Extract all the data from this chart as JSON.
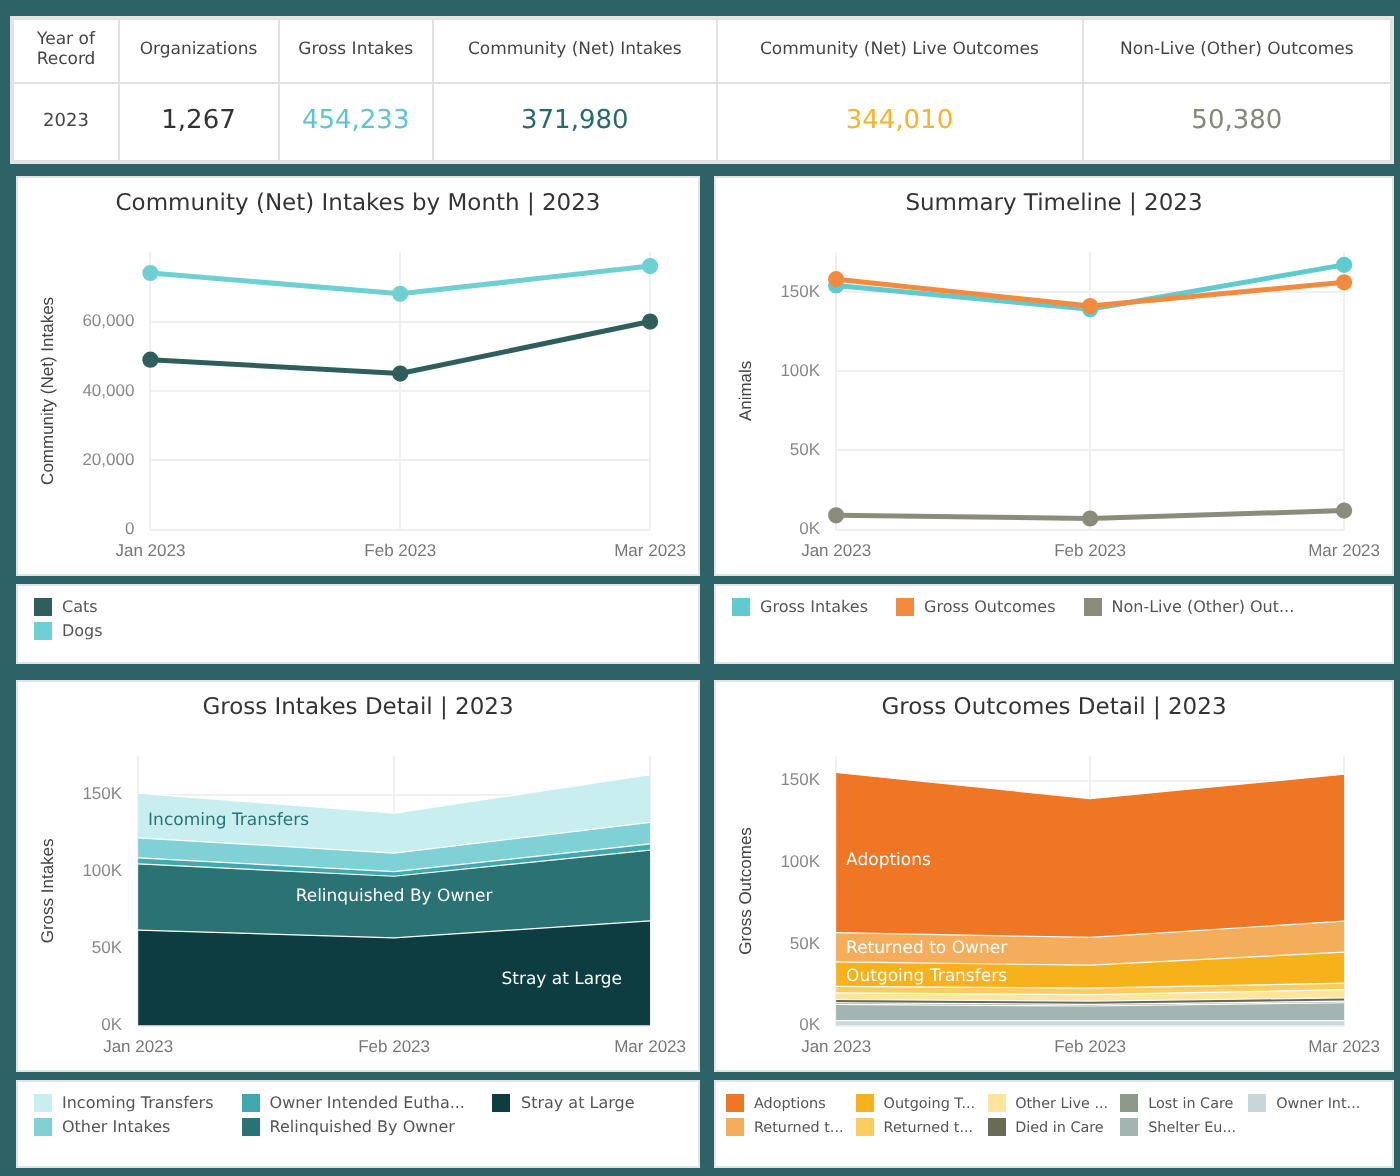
{
  "chart_data": [
    {
      "type": "other",
      "title": "Year of Record",
      "categories": [
        "Organizations",
        "Gross Intakes",
        "Community (Net) Intakes",
        "Community (Net) Live Outcomes",
        "Non-Live (Other) Outcomes"
      ],
      "xlabel": "2023",
      "value_labels": [
        "1,267",
        "454,233",
        "371,980",
        "344,010",
        "50,380"
      ]
    },
    {
      "type": "line",
      "title": "Community (Net) Intakes by Month | 2023",
      "ylabel": "Community (Net) Intakes",
      "categories": [
        "Jan 2023",
        "Feb 2023",
        "Mar 2023"
      ],
      "series": [
        {
          "name": "Cats",
          "color": "#2f5f5c",
          "values": [
            49000,
            45000,
            60000
          ]
        },
        {
          "name": "Dogs",
          "color": "#6fd0d3",
          "values": [
            74000,
            68000,
            76000
          ]
        }
      ],
      "ylim": [
        0,
        80000
      ],
      "yticks": [
        0,
        {
          "value": 20000,
          "label": "20,000"
        },
        {
          "value": 40000,
          "label": "40,000"
        },
        {
          "value": 60000,
          "label": "60,000"
        }
      ],
      "grid": true,
      "legend": "bottom",
      "marker": "circle"
    },
    {
      "type": "line",
      "title": "Summary Timeline | 2023",
      "ylabel": "Animals",
      "categories": [
        "Jan 2023",
        "Feb 2023",
        "Mar 2023"
      ],
      "series": [
        {
          "name": "Gross Intakes",
          "color": "#5fcbcf",
          "values": [
            154000,
            139000,
            167000
          ]
        },
        {
          "name": "Gross Outcomes",
          "color": "#f28b3e",
          "values": [
            158000,
            141000,
            156000
          ]
        },
        {
          "name": "Non-Live (Other) Out...",
          "color": "#8c8c7c",
          "values": [
            9000,
            7000,
            12000
          ]
        }
      ],
      "ylim": [
        0,
        175000
      ],
      "yticks": [
        {
          "value": 0,
          "label": "0K"
        },
        {
          "value": 50000,
          "label": "50K"
        },
        {
          "value": 100000,
          "label": "100K"
        },
        {
          "value": 150000,
          "label": "150K"
        }
      ],
      "grid": true,
      "legend": "bottom",
      "marker": "circle"
    },
    {
      "type": "area",
      "stacked": true,
      "title": "Gross Intakes Detail | 2023",
      "ylabel": "Gross Intakes",
      "categories": [
        "Jan 2023",
        "Feb 2023",
        "Mar 2023"
      ],
      "series": [
        {
          "name": "Stray at Large",
          "color": "#0d3d40",
          "values": [
            62000,
            57000,
            68000
          ]
        },
        {
          "name": "Relinquished By Owner",
          "color": "#2a7273",
          "values": [
            43000,
            40000,
            46000
          ]
        },
        {
          "name": "Owner Intended Eutha...",
          "color": "#3fa9ae",
          "values": [
            4000,
            3000,
            4000
          ]
        },
        {
          "name": "Other Intakes",
          "color": "#7fd1d5",
          "values": [
            13000,
            12000,
            14000
          ]
        },
        {
          "name": "Incoming Transfers",
          "color": "#c9eef0",
          "values": [
            29000,
            26000,
            31000
          ]
        }
      ],
      "ylim": [
        0,
        175000
      ],
      "yticks": [
        {
          "value": 0,
          "label": "0K"
        },
        {
          "value": 50000,
          "label": "50K"
        },
        {
          "value": 100000,
          "label": "100K"
        },
        {
          "value": 150000,
          "label": "150K"
        }
      ],
      "grid": true,
      "legend": "bottom",
      "annotations": [
        {
          "text": "Incoming Transfers",
          "x": "Jan 2023",
          "y": 133000
        },
        "Relinquished By Owner",
        {
          "text": "Stray at Large",
          "x": "Mar 2023",
          "y": 30000
        }
      ]
    },
    {
      "type": "area",
      "stacked": true,
      "title": "Gross Outcomes Detail | 2023",
      "ylabel": "Gross Outcomes",
      "categories": [
        "Jan 2023",
        "Feb 2023",
        "Mar 2023"
      ],
      "series": [
        {
          "name": "Owner Int...",
          "color": "#c6d6db",
          "values": [
            3000,
            3000,
            3000
          ]
        },
        {
          "name": "Shelter Eu...",
          "color": "#a2b5b0",
          "values": [
            10000,
            9000,
            11000
          ]
        },
        {
          "name": "Lost in Care",
          "color": "#8c9a89",
          "values": [
            1000,
            1000,
            1000
          ]
        },
        {
          "name": "Died in Care",
          "color": "#6a6b57",
          "values": [
            2000,
            2000,
            2000
          ]
        },
        {
          "name": "Other Live ...",
          "color": "#fde69c",
          "values": [
            4000,
            4000,
            5000
          ]
        },
        {
          "name": "Returned t...",
          "color": "#fccd5e",
          "values": [
            4000,
            4000,
            4000
          ]
        },
        {
          "name": "Outgoing T...",
          "color": "#f7b11b",
          "values": [
            15000,
            14000,
            19000
          ]
        },
        {
          "name": "Returned t...",
          "color": "#f4ad5b",
          "values": [
            18000,
            17000,
            19000
          ]
        },
        {
          "name": "Adoptions",
          "color": "#ee7624",
          "values": [
            98000,
            85000,
            90000
          ]
        }
      ],
      "ylim": [
        0,
        165000
      ],
      "yticks": [
        {
          "value": 0,
          "label": "0K"
        },
        {
          "value": 50000,
          "label": "50K"
        },
        {
          "value": 100000,
          "label": "100K"
        },
        {
          "value": 150000,
          "label": "150K"
        }
      ],
      "grid": true,
      "legend": "bottom",
      "annotations": [
        {
          "text": "Adoptions",
          "x": "Jan 2023",
          "y": 101000
        },
        {
          "text": "Returned to Owner",
          "x": "Jan 2023",
          "y": 47000
        },
        {
          "text": "Outgoing Transfers",
          "x": "Jan 2023",
          "y": 30000
        }
      ]
    }
  ]
}
